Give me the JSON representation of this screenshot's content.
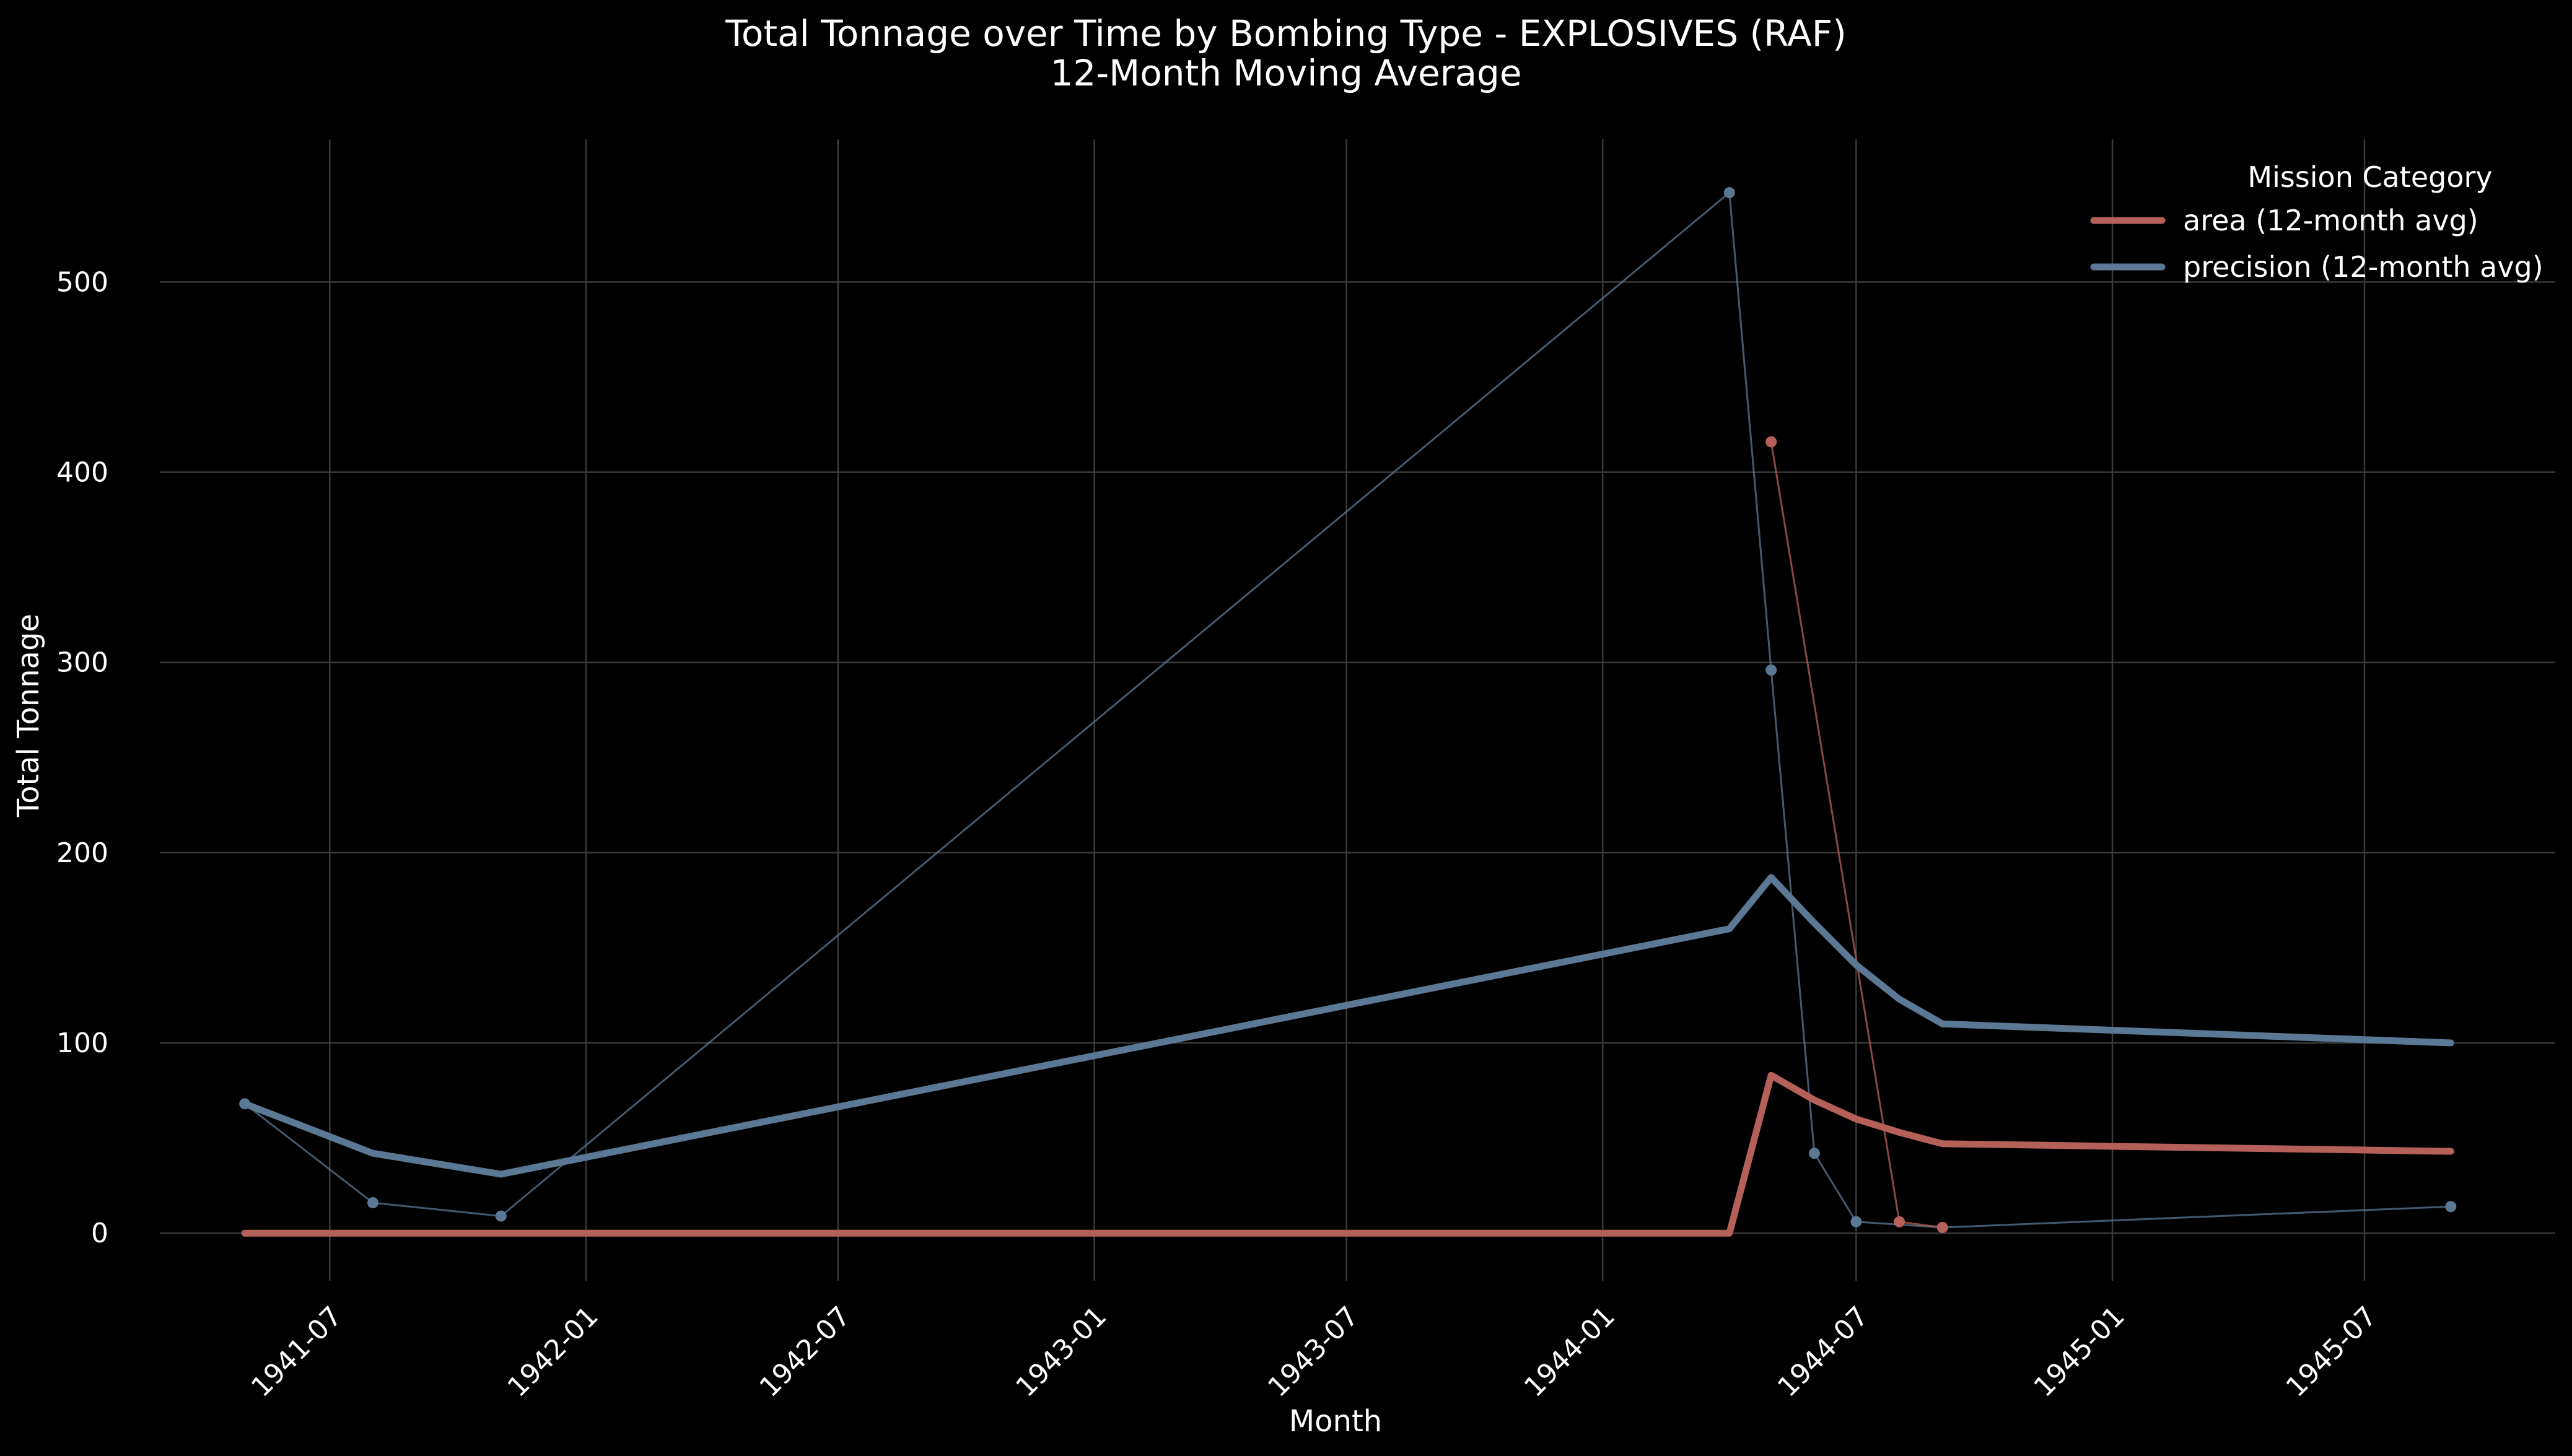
{
  "chart_data": {
    "type": "line",
    "title": "Total Tonnage over Time by Bombing Type - EXPLOSIVES (RAF)",
    "subtitle": "12-Month Moving Average",
    "xlabel": "Month",
    "ylabel": "Total Tonnage",
    "x_axis_type": "date",
    "xlim": [
      "1941-03-01",
      "1945-11-15"
    ],
    "ylim": [
      -25,
      575
    ],
    "x_ticks": [
      "1941-07",
      "1942-01",
      "1942-07",
      "1943-01",
      "1943-07",
      "1944-01",
      "1944-07",
      "1945-01",
      "1945-07"
    ],
    "y_ticks": [
      0,
      100,
      200,
      300,
      400,
      500
    ],
    "grid": true,
    "legend": {
      "title": "Mission Category",
      "placement": "top-right"
    },
    "colors": {
      "area": "#b5615a",
      "precision": "#5b7894",
      "background": "#000000",
      "grid": "#3a3a3a",
      "text": "#ffffff"
    },
    "series": [
      {
        "name": "area (12-month avg)",
        "key": "area",
        "style": "moving-average",
        "x": [
          "1941-05",
          "1941-08",
          "1941-11",
          "1944-04",
          "1944-05",
          "1944-06",
          "1944-07",
          "1944-08",
          "1944-09",
          "1945-09"
        ],
        "values": [
          0,
          0,
          0,
          0,
          83,
          70,
          60,
          53,
          47,
          43
        ]
      },
      {
        "name": "precision (12-month avg)",
        "key": "precision",
        "style": "moving-average",
        "x": [
          "1941-05",
          "1941-08",
          "1941-11",
          "1944-04",
          "1944-05",
          "1944-06",
          "1944-07",
          "1944-08",
          "1944-09",
          "1945-09"
        ],
        "values": [
          68,
          42,
          31,
          160,
          187,
          163,
          141,
          123,
          110,
          100
        ]
      },
      {
        "name": "",
        "key": "area",
        "style": "monthly",
        "x": [
          "1944-05",
          "1944-08",
          "1944-09"
        ],
        "values": [
          416,
          6,
          3
        ]
      },
      {
        "name": "",
        "key": "precision",
        "style": "monthly",
        "x": [
          "1941-05",
          "1941-08",
          "1941-11",
          "1944-04",
          "1944-05",
          "1944-06",
          "1944-07",
          "1944-09",
          "1945-09"
        ],
        "values": [
          68,
          16,
          9,
          547,
          296,
          42,
          6,
          3,
          14
        ]
      }
    ]
  }
}
